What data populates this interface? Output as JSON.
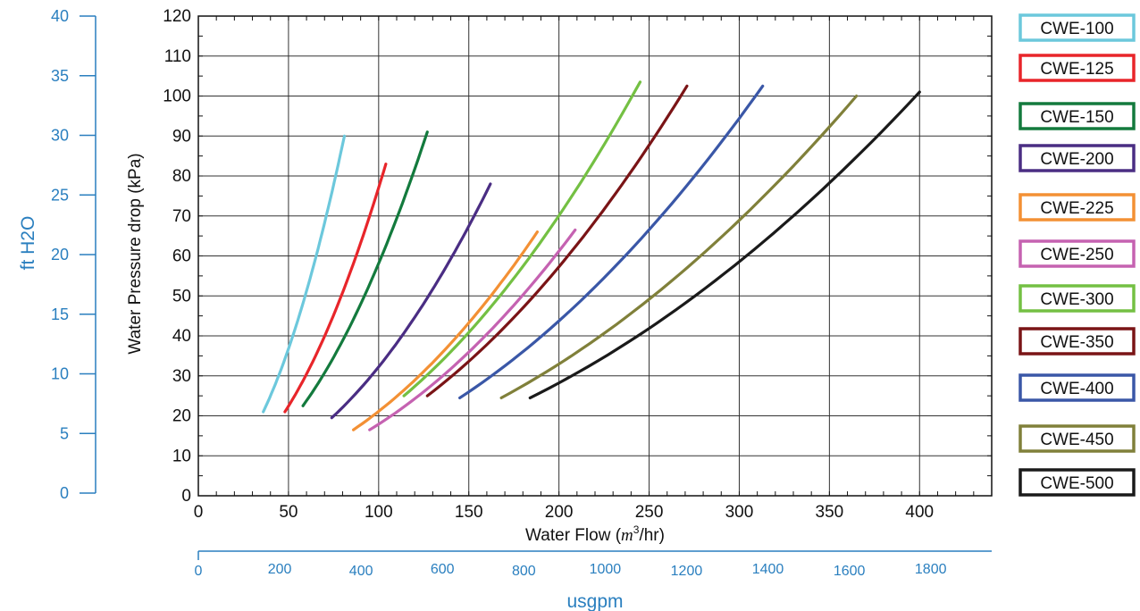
{
  "chart_data": {
    "type": "line",
    "xlabel_main": "Water Flow (",
    "xlabel_unit": "m",
    "xlabel_exp": "3",
    "xlabel_tail": "/hr)",
    "ylabel": "Water Pressure drop (kPa)",
    "xlim": [
      0,
      440
    ],
    "ylim": [
      0,
      120
    ],
    "x_ticks": [
      0,
      50,
      100,
      150,
      200,
      250,
      300,
      350,
      400
    ],
    "y_ticks": [
      0,
      10,
      20,
      30,
      40,
      50,
      60,
      70,
      80,
      90,
      100,
      110,
      120
    ],
    "grid": true,
    "secondary_y_axis": {
      "label": "ft H2O",
      "label_main": "ft H",
      "label_sub": "2",
      "label_tail": "O",
      "ticks": [
        0,
        5,
        10,
        15,
        20,
        25,
        30,
        35,
        40
      ],
      "color": "#2a7fbf"
    },
    "secondary_x_axis": {
      "label": "usgpm",
      "ticks": [
        0,
        200,
        400,
        600,
        800,
        1000,
        1200,
        1400,
        1600,
        1800
      ],
      "color": "#2a7fbf"
    },
    "legend_position": "right",
    "series": [
      {
        "name": "CWE-100",
        "color": "#6cc8dc",
        "x": [
          36,
          81
        ],
        "y": [
          21,
          90
        ]
      },
      {
        "name": "CWE-125",
        "color": "#e8252a",
        "x": [
          48,
          104
        ],
        "y": [
          21,
          83
        ]
      },
      {
        "name": "CWE-150",
        "color": "#137a3d",
        "x": [
          58,
          127
        ],
        "y": [
          22.5,
          91
        ]
      },
      {
        "name": "CWE-200",
        "color": "#4a2d83",
        "x": [
          74,
          162
        ],
        "y": [
          19.5,
          78
        ]
      },
      {
        "name": "CWE-225",
        "color": "#f39034",
        "x": [
          86,
          188
        ],
        "y": [
          16.5,
          66
        ]
      },
      {
        "name": "CWE-250",
        "color": "#c562b1",
        "x": [
          95,
          209
        ],
        "y": [
          16.5,
          66.5
        ]
      },
      {
        "name": "CWE-300",
        "color": "#74c043",
        "x": [
          114,
          245
        ],
        "y": [
          25,
          103.5
        ]
      },
      {
        "name": "CWE-350",
        "color": "#7a1416",
        "x": [
          127,
          271
        ],
        "y": [
          25,
          102.5
        ]
      },
      {
        "name": "CWE-400",
        "color": "#3a57a7",
        "x": [
          145,
          313
        ],
        "y": [
          24.5,
          102.5
        ]
      },
      {
        "name": "CWE-450",
        "color": "#80803a",
        "x": [
          168,
          365
        ],
        "y": [
          24.5,
          100
        ]
      },
      {
        "name": "CWE-500",
        "color": "#1a1a1a",
        "x": [
          184,
          400
        ],
        "y": [
          24.5,
          101
        ]
      }
    ]
  }
}
